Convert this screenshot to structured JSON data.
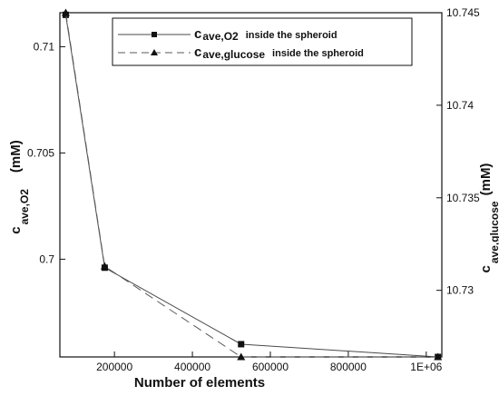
{
  "chart_data": {
    "type": "line",
    "xlabel": "Number of elements",
    "ylabel_left": {
      "main": "c",
      "sub": "ave,O2",
      "unit": "(mM)"
    },
    "ylabel_right": {
      "main": "c",
      "sub": "ave,glucose",
      "unit": "(mM)"
    },
    "xlim": [
      60000,
      1040000
    ],
    "ylim_left": [
      0.6954,
      0.7116
    ],
    "ylim_right": [
      10.7264,
      10.745
    ],
    "x_ticks": [
      200000,
      400000,
      600000,
      800000,
      1000000
    ],
    "x_tick_labels": [
      "200000",
      "400000",
      "600000",
      "800000",
      "1E+06"
    ],
    "y_left_ticks": [
      0.7,
      0.705,
      0.71
    ],
    "y_left_tick_labels": [
      "0.7",
      "0.705",
      "0.71"
    ],
    "y_right_ticks": [
      10.73,
      10.735,
      10.74,
      10.745
    ],
    "y_right_tick_labels": [
      "10.73",
      "10.735",
      "10.74",
      "10.745"
    ],
    "legend": {
      "placement": "top-right",
      "entries": [
        {
          "main": "c",
          "sub": "ave,O2",
          "suffix": "inside the spheroid"
        },
        {
          "main": "c",
          "sub": "ave,glucose",
          "suffix": "inside the spheroid"
        }
      ]
    },
    "series": [
      {
        "axis": "left",
        "marker": "square",
        "line": "solid",
        "color": "#4a4a4a",
        "x": [
          75000,
          175000,
          525000,
          1030000
        ],
        "y": [
          0.7115,
          0.6996,
          0.696,
          0.6954
        ]
      },
      {
        "axis": "right",
        "marker": "triangle",
        "line": "dashed",
        "color": "#5a5a5a",
        "x": [
          75000,
          175000,
          525000,
          1030000
        ],
        "y": [
          10.745,
          10.7313,
          10.7264,
          10.7264
        ]
      }
    ]
  }
}
